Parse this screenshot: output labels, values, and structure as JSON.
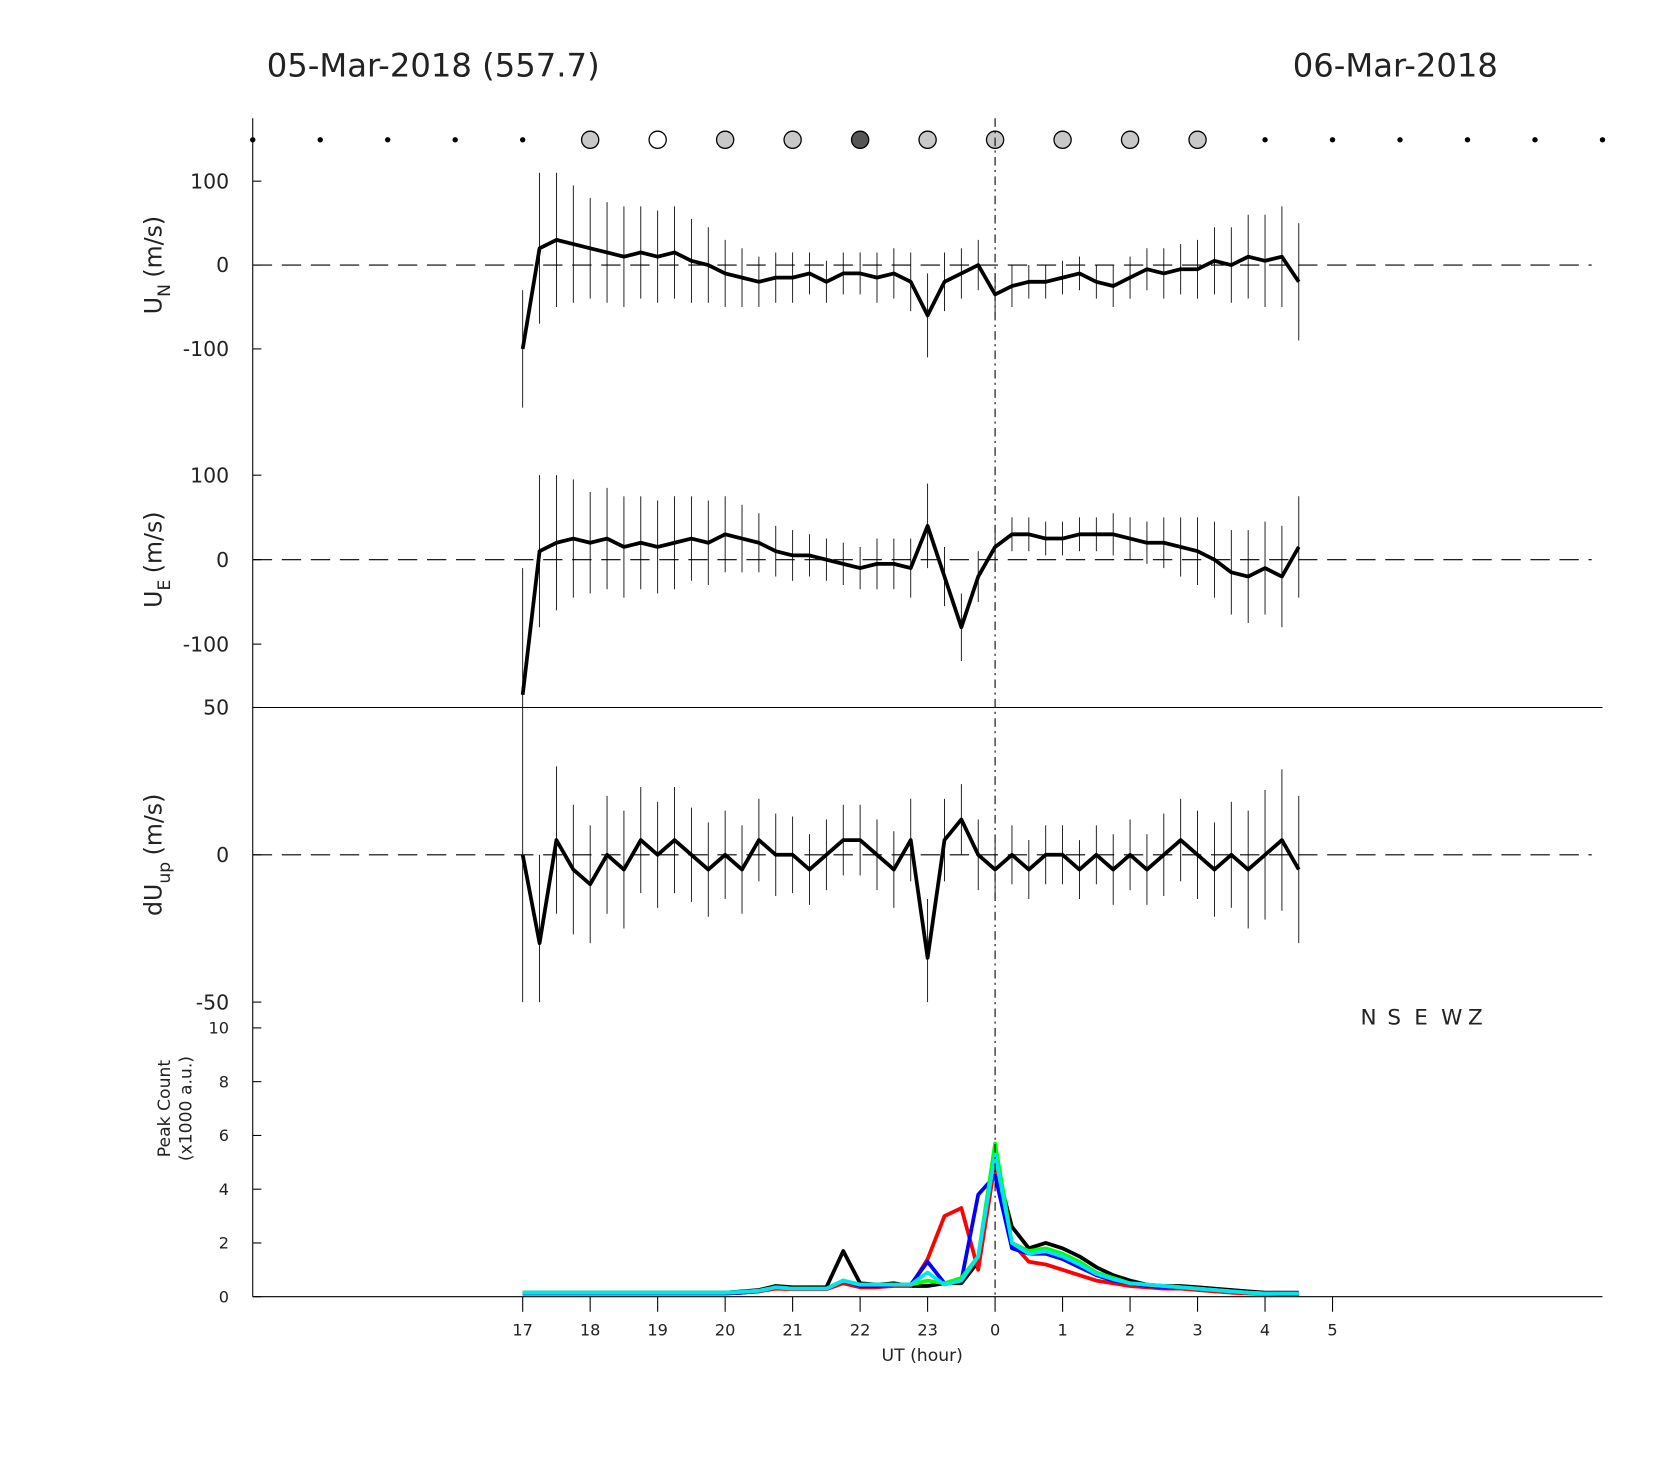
{
  "chart_data": [
    {
      "type": "errorbar",
      "title": "05-Mar-2018 (557.7)",
      "title_right": "06-Mar-2018",
      "ylabel": [
        "U",
        "N",
        "(m/s)"
      ],
      "color": "#000000",
      "markers": {
        "x": [
          13,
          14,
          15,
          16,
          17,
          18,
          19,
          20,
          21,
          22,
          23,
          24,
          25,
          26,
          27,
          28,
          29,
          30,
          31,
          32,
          33
        ],
        "colors": [
          null,
          null,
          null,
          null,
          null,
          "#c8c8c8",
          "#ffffff",
          "#c8c8c8",
          "#c8c8c8",
          "#555555",
          "#c8c8c8",
          "#c8c8c8",
          "#c8c8c8",
          "#c8c8c8",
          "#c8c8c8",
          null,
          null,
          null,
          null,
          null,
          null
        ]
      },
      "x": [
        17,
        17.25,
        17.5,
        17.75,
        18,
        18.25,
        18.5,
        18.75,
        19,
        19.25,
        19.5,
        19.75,
        20,
        20.25,
        20.5,
        20.75,
        21,
        21.25,
        21.5,
        21.75,
        22,
        22.25,
        22.5,
        22.75,
        23,
        23.25,
        23.5,
        23.75,
        24,
        24.25,
        24.5,
        24.75,
        25,
        25.25,
        25.5,
        25.75,
        26,
        26.25,
        26.5,
        26.75,
        27,
        27.25,
        27.5,
        27.75,
        28,
        28.25,
        28.5
      ],
      "values": [
        -100,
        20,
        30,
        25,
        20,
        15,
        10,
        15,
        10,
        15,
        5,
        0,
        -10,
        -15,
        -20,
        -15,
        -15,
        -10,
        -20,
        -10,
        -10,
        -15,
        -10,
        -20,
        -60,
        -20,
        -10,
        0,
        -35,
        -25,
        -20,
        -20,
        -15,
        -10,
        -20,
        -25,
        -15,
        -5,
        -10,
        -5,
        -5,
        5,
        0,
        10,
        5,
        10,
        -20
      ],
      "errors": [
        70,
        90,
        80,
        70,
        60,
        60,
        60,
        55,
        55,
        55,
        50,
        45,
        40,
        35,
        30,
        30,
        30,
        25,
        25,
        25,
        25,
        30,
        30,
        35,
        50,
        35,
        30,
        30,
        25,
        25,
        20,
        20,
        20,
        20,
        20,
        25,
        25,
        25,
        30,
        30,
        35,
        40,
        45,
        50,
        55,
        60,
        70
      ],
      "xlim": [
        13,
        33
      ],
      "ylim": [
        -175,
        175
      ],
      "yticks": [
        -100,
        0,
        100
      ]
    },
    {
      "type": "errorbar",
      "ylabel": [
        "U",
        "E",
        "(m/s)"
      ],
      "color": "#000000",
      "x": [
        17,
        17.25,
        17.5,
        17.75,
        18,
        18.25,
        18.5,
        18.75,
        19,
        19.25,
        19.5,
        19.75,
        20,
        20.25,
        20.5,
        20.75,
        21,
        21.25,
        21.5,
        21.75,
        22,
        22.25,
        22.5,
        22.75,
        23,
        23.25,
        23.5,
        23.75,
        24,
        24.25,
        24.5,
        24.75,
        25,
        25.25,
        25.5,
        25.75,
        26,
        26.25,
        26.5,
        26.75,
        27,
        27.25,
        27.5,
        27.75,
        28,
        28.25,
        28.5
      ],
      "values": [
        -160,
        10,
        20,
        25,
        20,
        25,
        15,
        20,
        15,
        20,
        25,
        20,
        30,
        25,
        20,
        10,
        5,
        5,
        0,
        -5,
        -10,
        -5,
        -5,
        -10,
        40,
        -20,
        -80,
        -20,
        15,
        30,
        30,
        25,
        25,
        30,
        30,
        30,
        25,
        20,
        20,
        15,
        10,
        0,
        -15,
        -20,
        -10,
        -20,
        15
      ],
      "errors": [
        150,
        90,
        80,
        70,
        60,
        60,
        60,
        55,
        55,
        55,
        50,
        50,
        45,
        40,
        35,
        30,
        30,
        25,
        25,
        25,
        25,
        30,
        30,
        35,
        50,
        35,
        40,
        30,
        25,
        20,
        20,
        20,
        20,
        20,
        20,
        25,
        25,
        25,
        30,
        35,
        40,
        45,
        50,
        55,
        55,
        60,
        60
      ],
      "xlim": [
        13,
        33
      ],
      "ylim": [
        -175,
        175
      ],
      "yticks": [
        -100,
        0,
        100
      ]
    },
    {
      "type": "errorbar",
      "ylabel": [
        "dU",
        "up",
        "(m/s)"
      ],
      "color": "#000000",
      "x": [
        17,
        17.25,
        17.5,
        17.75,
        18,
        18.25,
        18.5,
        18.75,
        19,
        19.25,
        19.5,
        19.75,
        20,
        20.25,
        20.5,
        20.75,
        21,
        21.25,
        21.5,
        21.75,
        22,
        22.25,
        22.5,
        22.75,
        23,
        23.25,
        23.5,
        23.75,
        24,
        24.25,
        24.5,
        24.75,
        25,
        25.25,
        25.5,
        25.75,
        26,
        26.25,
        26.5,
        26.75,
        27,
        27.25,
        27.5,
        27.75,
        28,
        28.25,
        28.5
      ],
      "values": [
        0,
        -30,
        5,
        -5,
        -10,
        0,
        -5,
        5,
        0,
        5,
        0,
        -5,
        0,
        -5,
        5,
        0,
        0,
        -5,
        0,
        5,
        5,
        0,
        -5,
        5,
        -35,
        5,
        12,
        0,
        -5,
        0,
        -5,
        0,
        0,
        -5,
        0,
        -5,
        0,
        -5,
        0,
        5,
        0,
        -5,
        0,
        -5,
        0,
        5,
        -5
      ],
      "errors": [
        50,
        30,
        25,
        22,
        20,
        20,
        20,
        18,
        18,
        18,
        16,
        16,
        15,
        15,
        14,
        14,
        13,
        12,
        12,
        12,
        12,
        12,
        13,
        14,
        20,
        14,
        12,
        12,
        10,
        10,
        10,
        10,
        10,
        10,
        10,
        12,
        12,
        12,
        14,
        14,
        15,
        16,
        18,
        20,
        22,
        24,
        25
      ],
      "xlim": [
        13,
        33
      ],
      "ylim": [
        -50,
        50
      ],
      "yticks": [
        -50,
        0,
        50
      ]
    },
    {
      "type": "line",
      "ylabel": [
        "Peak Count",
        "(x1000 a.u.)"
      ],
      "xlabel": "UT (hour)",
      "x": [
        17,
        17.25,
        17.5,
        17.75,
        18,
        18.25,
        18.5,
        18.75,
        19,
        19.25,
        19.5,
        19.75,
        20,
        20.25,
        20.5,
        20.75,
        21,
        21.25,
        21.5,
        21.75,
        22,
        22.25,
        22.5,
        22.75,
        23,
        23.25,
        23.5,
        23.75,
        24,
        24.25,
        24.5,
        24.75,
        25,
        25.25,
        25.5,
        25.75,
        26,
        26.25,
        26.5,
        26.75,
        27,
        27.25,
        27.5,
        27.75,
        28,
        28.25,
        28.5
      ],
      "series": [
        {
          "name": "N",
          "color": "#000000",
          "values": [
            0.15,
            0.15,
            0.15,
            0.15,
            0.15,
            0.15,
            0.15,
            0.15,
            0.15,
            0.15,
            0.15,
            0.15,
            0.15,
            0.2,
            0.25,
            0.4,
            0.35,
            0.35,
            0.35,
            1.7,
            0.5,
            0.45,
            0.5,
            0.4,
            0.4,
            0.5,
            0.5,
            1.3,
            5.0,
            2.6,
            1.8,
            2.0,
            1.8,
            1.5,
            1.1,
            0.8,
            0.6,
            0.45,
            0.4,
            0.4,
            0.35,
            0.3,
            0.25,
            0.2,
            0.15,
            0.15,
            0.15
          ]
        },
        {
          "name": "S",
          "color": "#ff0000",
          "values": [
            0.12,
            0.12,
            0.12,
            0.12,
            0.12,
            0.12,
            0.12,
            0.12,
            0.12,
            0.12,
            0.12,
            0.12,
            0.12,
            0.15,
            0.2,
            0.3,
            0.28,
            0.28,
            0.28,
            0.5,
            0.35,
            0.35,
            0.4,
            0.4,
            1.4,
            3.0,
            3.3,
            1.0,
            5.0,
            2.0,
            1.3,
            1.2,
            1.0,
            0.8,
            0.6,
            0.5,
            0.4,
            0.35,
            0.3,
            0.3,
            0.25,
            0.2,
            0.15,
            0.12,
            0.1,
            0.1,
            0.1
          ]
        },
        {
          "name": "E",
          "color": "#0000ff",
          "values": [
            0.12,
            0.12,
            0.12,
            0.12,
            0.12,
            0.12,
            0.12,
            0.12,
            0.12,
            0.12,
            0.12,
            0.12,
            0.12,
            0.15,
            0.2,
            0.35,
            0.3,
            0.3,
            0.3,
            0.6,
            0.4,
            0.4,
            0.45,
            0.45,
            1.3,
            0.5,
            0.6,
            3.8,
            4.5,
            1.8,
            1.6,
            1.6,
            1.4,
            1.1,
            0.8,
            0.6,
            0.5,
            0.4,
            0.35,
            0.35,
            0.3,
            0.25,
            0.2,
            0.15,
            0.12,
            0.1,
            0.1
          ]
        },
        {
          "name": "W",
          "color": "#00ff00",
          "values": [
            0.15,
            0.15,
            0.15,
            0.15,
            0.15,
            0.15,
            0.15,
            0.15,
            0.15,
            0.15,
            0.15,
            0.15,
            0.15,
            0.18,
            0.22,
            0.35,
            0.3,
            0.3,
            0.3,
            0.6,
            0.45,
            0.45,
            0.45,
            0.45,
            0.6,
            0.5,
            0.7,
            1.5,
            5.7,
            2.0,
            1.7,
            1.8,
            1.6,
            1.3,
            0.9,
            0.7,
            0.5,
            0.45,
            0.4,
            0.35,
            0.3,
            0.25,
            0.2,
            0.15,
            0.12,
            0.12,
            0.12
          ]
        },
        {
          "name": "Z",
          "color": "#00e5ee",
          "values": [
            0.15,
            0.15,
            0.15,
            0.15,
            0.15,
            0.15,
            0.15,
            0.15,
            0.15,
            0.15,
            0.15,
            0.15,
            0.15,
            0.18,
            0.22,
            0.35,
            0.3,
            0.3,
            0.3,
            0.6,
            0.45,
            0.45,
            0.45,
            0.45,
            0.9,
            0.45,
            0.6,
            1.5,
            5.3,
            2.0,
            1.6,
            1.7,
            1.5,
            1.2,
            0.85,
            0.65,
            0.5,
            0.45,
            0.4,
            0.35,
            0.3,
            0.25,
            0.2,
            0.15,
            0.12,
            0.12,
            0.12
          ]
        }
      ],
      "xlim": [
        13,
        33
      ],
      "ylim": [
        0,
        10
      ],
      "yticks": [
        0,
        2,
        4,
        6,
        8,
        10
      ],
      "xticks": [
        17,
        18,
        19,
        20,
        21,
        22,
        23,
        {
          "value": 24,
          "label": "0"
        },
        {
          "value": 25,
          "label": "1"
        },
        {
          "value": 26,
          "label": "2"
        },
        {
          "value": 27,
          "label": "3"
        },
        {
          "value": 28,
          "label": "4"
        },
        {
          "value": 29,
          "label": "5"
        }
      ]
    }
  ]
}
